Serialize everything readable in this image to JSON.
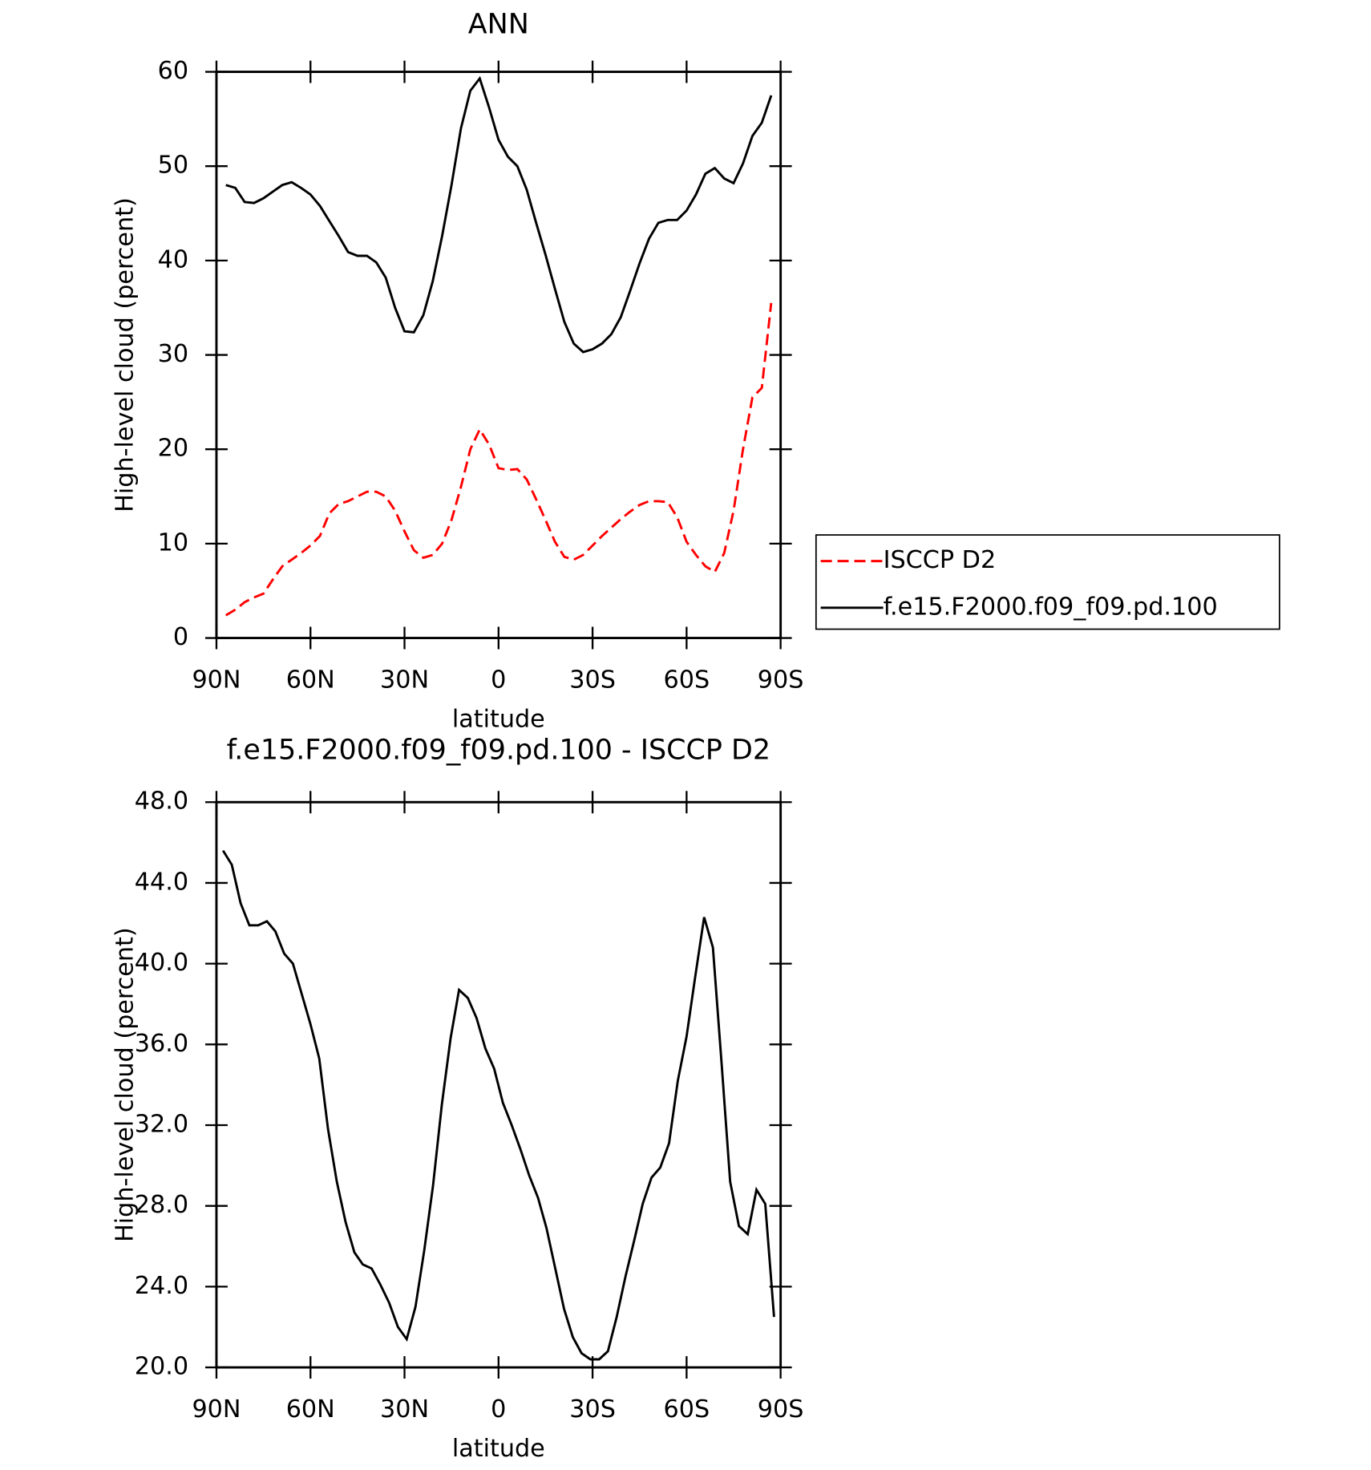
{
  "chart_data": [
    {
      "type": "line",
      "title": "ANN",
      "x_label": "latitude",
      "y_label": "High-level cloud (percent)",
      "x": [
        87,
        84,
        81,
        78,
        75,
        72,
        69,
        66,
        63,
        60,
        57,
        54,
        51,
        48,
        45,
        42,
        39,
        36,
        33,
        30,
        27,
        24,
        21,
        18,
        15,
        12,
        9,
        6,
        3,
        0,
        -3,
        -6,
        -9,
        -12,
        -15,
        -18,
        -21,
        -24,
        -27,
        -30,
        -33,
        -36,
        -39,
        -42,
        -45,
        -48,
        -51,
        -54,
        -57,
        -60,
        -63,
        -66,
        -69,
        -72,
        -75,
        -78,
        -81,
        -84,
        -87
      ],
      "series": [
        {
          "name": "ISCCP D2",
          "color": "#ff0000",
          "dashed": true,
          "values": [
            2.4,
            3.0,
            3.8,
            4.3,
            4.7,
            6.2,
            7.6,
            8.3,
            9.0,
            9.8,
            10.8,
            13.2,
            14.2,
            14.5,
            15.0,
            15.5,
            15.5,
            15.0,
            13.5,
            11.3,
            9.3,
            8.5,
            8.8,
            10.0,
            12.5,
            16.0,
            20.0,
            22.1,
            20.5,
            18.0,
            17.8,
            17.9,
            16.8,
            14.7,
            12.5,
            10.2,
            8.6,
            8.3,
            8.8,
            9.8,
            10.8,
            11.7,
            12.6,
            13.4,
            14.1,
            14.5,
            14.5,
            14.4,
            12.8,
            10.2,
            8.8,
            7.6,
            7.0,
            9.0,
            13.5,
            20.0,
            25.5,
            26.5,
            35.5
          ]
        },
        {
          "name": "f.e15.F2000.f09_f09.pd.100",
          "color": "#000000",
          "dashed": false,
          "values": [
            48.0,
            47.7,
            46.2,
            46.1,
            46.6,
            47.3,
            48.0,
            48.3,
            47.7,
            47.0,
            45.8,
            44.2,
            42.6,
            40.9,
            40.5,
            40.5,
            39.8,
            38.2,
            35.0,
            32.5,
            32.4,
            34.2,
            37.8,
            42.6,
            48.0,
            54.0,
            58.0,
            59.3,
            56.2,
            52.8,
            51.0,
            50.0,
            47.5,
            44.0,
            40.6,
            37.0,
            33.5,
            31.2,
            30.3,
            30.6,
            31.2,
            32.2,
            34.0,
            36.8,
            39.7,
            42.3,
            44.0,
            44.3,
            44.3,
            45.3,
            47.0,
            49.2,
            49.8,
            48.7,
            48.2,
            50.3,
            53.2,
            54.6,
            57.5
          ]
        }
      ],
      "xlim": [
        90,
        -90
      ],
      "xticks": [
        {
          "value": 90,
          "label": "90N"
        },
        {
          "value": 60,
          "label": "60N"
        },
        {
          "value": 30,
          "label": "30N"
        },
        0,
        {
          "value": -30,
          "label": "30S"
        },
        {
          "value": -60,
          "label": "60S"
        },
        {
          "value": -90,
          "label": "90S"
        }
      ],
      "ylim": [
        0,
        60
      ],
      "yticks": [
        0,
        10,
        20,
        30,
        40,
        50,
        60
      ],
      "legend": "right"
    },
    {
      "type": "line",
      "title": "f.e15.F2000.f09_f09.pd.100 - ISCCP D2",
      "x_label": "latitude",
      "y_label": "High-level cloud (percent)",
      "x": [
        87.9,
        85.1,
        82.3,
        79.5,
        76.7,
        73.9,
        71.2,
        68.4,
        65.6,
        62.8,
        60.0,
        57.2,
        54.4,
        51.6,
        48.8,
        46.0,
        43.3,
        40.5,
        37.7,
        34.9,
        32.1,
        29.3,
        26.5,
        23.7,
        20.9,
        18.1,
        15.3,
        12.6,
        9.8,
        7.0,
        4.2,
        1.4,
        -1.4,
        -4.2,
        -7.0,
        -9.8,
        -12.6,
        -15.3,
        -18.1,
        -20.9,
        -23.7,
        -26.5,
        -29.3,
        -32.1,
        -34.9,
        -37.7,
        -40.5,
        -43.3,
        -46.0,
        -48.8,
        -51.6,
        -54.4,
        -57.2,
        -60.0,
        -62.8,
        -65.6,
        -68.4,
        -71.2,
        -73.9,
        -76.7,
        -79.5,
        -82.3,
        -85.1,
        -87.9
      ],
      "series": [
        {
          "name": "f.e15.F2000.f09_f09.pd.100 - ISCCP D2",
          "color": "#000000",
          "dashed": false,
          "values": [
            45.6,
            44.9,
            43.0,
            41.9,
            41.9,
            42.1,
            41.6,
            40.5,
            40.0,
            38.5,
            37.0,
            35.3,
            31.8,
            29.2,
            27.2,
            25.7,
            25.1,
            24.9,
            24.1,
            23.2,
            22.0,
            21.4,
            23.0,
            25.8,
            29.0,
            33.0,
            36.3,
            38.7,
            38.3,
            37.3,
            35.8,
            34.8,
            33.1,
            32.0,
            30.8,
            29.5,
            28.4,
            26.9,
            24.9,
            22.9,
            21.5,
            20.7,
            20.4,
            20.4,
            20.8,
            22.5,
            24.5,
            26.3,
            28.1,
            29.4,
            29.9,
            31.1,
            34.2,
            36.4,
            39.4,
            42.3,
            40.8,
            35.0,
            29.2,
            27.0,
            26.6,
            28.8,
            28.1,
            22.5
          ]
        }
      ],
      "xlim": [
        90,
        -90
      ],
      "xticks": [
        {
          "value": 90,
          "label": "90N"
        },
        {
          "value": 60,
          "label": "60N"
        },
        {
          "value": 30,
          "label": "30N"
        },
        0,
        {
          "value": -30,
          "label": "30S"
        },
        {
          "value": -60,
          "label": "60S"
        },
        {
          "value": -90,
          "label": "90S"
        }
      ],
      "ylim": [
        20,
        48
      ],
      "yticks": [
        {
          "value": 20,
          "label": "20.0"
        },
        {
          "value": 24,
          "label": "24.0"
        },
        {
          "value": 28,
          "label": "28.0"
        },
        {
          "value": 32,
          "label": "32.0"
        },
        {
          "value": 36,
          "label": "36.0"
        },
        {
          "value": 40,
          "label": "40.0"
        },
        {
          "value": 44,
          "label": "44.0"
        },
        {
          "value": 48,
          "label": "48.0"
        }
      ]
    }
  ]
}
